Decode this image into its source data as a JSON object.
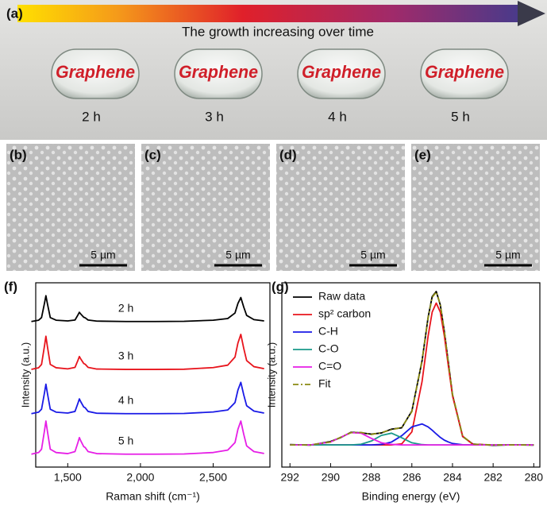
{
  "photos": {
    "label": "(a)",
    "caption": "The growth increasing over time",
    "items": [
      {
        "text": "Graphene",
        "time": "2 h"
      },
      {
        "text": "Graphene",
        "time": "3 h"
      },
      {
        "text": "Graphene",
        "time": "4 h"
      },
      {
        "text": "Graphene",
        "time": "5 h"
      }
    ]
  },
  "sem": [
    {
      "label": "(b)",
      "scale": "5 µm"
    },
    {
      "label": "(c)",
      "scale": "5 µm"
    },
    {
      "label": "(d)",
      "scale": "5 µm"
    },
    {
      "label": "(e)",
      "scale": "5 µm"
    }
  ],
  "chart_data": [
    {
      "type": "line",
      "panel_label": "(f)",
      "x_label": "Raman shift (cm⁻¹)",
      "y_label": "Intensity (a.u.)",
      "xlim": [
        1280,
        2890
      ],
      "ylim": [
        0,
        100
      ],
      "xticks": [
        {
          "value": 1500,
          "label": "1,500"
        },
        {
          "value": 2000,
          "label": "2,000"
        },
        {
          "value": 2500,
          "label": "2,500"
        }
      ],
      "x": [
        1250,
        1300,
        1320,
        1340,
        1350,
        1360,
        1380,
        1420,
        1500,
        1550,
        1570,
        1580,
        1590,
        1610,
        1620,
        1640,
        1700,
        1900,
        2100,
        2300,
        2500,
        2600,
        2650,
        2670,
        2690,
        2710,
        2730,
        2780,
        2850
      ],
      "series": [
        {
          "name": "2 h",
          "color": "#000000",
          "values": [
            79,
            79.7,
            81.1,
            88.8,
            93,
            88.8,
            81.1,
            79.7,
            79.3,
            79.8,
            82.5,
            84,
            83,
            81.3,
            81,
            79.8,
            79.2,
            79,
            79,
            79.1,
            79.7,
            80.6,
            83.6,
            88.8,
            92,
            86.8,
            82.3,
            80,
            79.3
          ]
        },
        {
          "name": "3 h",
          "color": "#e8141c",
          "values": [
            53,
            53.9,
            55.7,
            65.6,
            71,
            65.6,
            55.7,
            53.9,
            53.3,
            54.1,
            57.9,
            60,
            58.6,
            56.2,
            55.8,
            54.1,
            53.2,
            53,
            53,
            53.1,
            54,
            55.3,
            59.7,
            67.3,
            72,
            64.4,
            57.8,
            54.5,
            53.4
          ]
        },
        {
          "name": "4 h",
          "color": "#1a1ae6",
          "values": [
            29,
            29.8,
            31.4,
            40.2,
            45,
            40.2,
            31.4,
            29.8,
            29.3,
            30.2,
            34.6,
            37,
            35.4,
            32.6,
            32.2,
            30.2,
            29.2,
            29,
            29,
            29.1,
            29.9,
            31,
            35,
            41.8,
            46,
            39.2,
            33.3,
            30.4,
            29.3
          ]
        },
        {
          "name": "5 h",
          "color": "#e61ee6",
          "values": [
            7,
            7.9,
            9.7,
            19.6,
            25,
            19.6,
            9.7,
            7.9,
            7.3,
            8.4,
            13.3,
            16,
            14.2,
            11.1,
            10.6,
            8.4,
            7.3,
            7,
            7,
            7.1,
            7.9,
            9.2,
            13.3,
            20.5,
            25,
            17.8,
            11.5,
            8.4,
            7.4
          ]
        }
      ]
    },
    {
      "type": "line",
      "panel_label": "(g)",
      "x_label": "Binding energy (eV)",
      "y_label": "Intensity (a.u.)",
      "xlim": [
        292.4,
        279.7
      ],
      "ylim": [
        0,
        100
      ],
      "xticks": [
        292,
        290,
        288,
        286,
        284,
        282,
        280
      ],
      "legend": "upper left",
      "x": [
        292,
        291,
        290,
        289.5,
        289,
        288.5,
        288,
        287.5,
        287,
        286.5,
        286,
        285.5,
        285.2,
        285,
        284.8,
        284.6,
        284.4,
        284.2,
        284,
        283.5,
        283,
        282,
        281,
        280
      ],
      "series": [
        {
          "name": "Raw data",
          "color": "#000000",
          "values": [
            12.2,
            11.9,
            13.9,
            16.0,
            18.9,
            18.6,
            17.9,
            18.5,
            20.6,
            21.3,
            30.4,
            57.5,
            81.3,
            92.5,
            95.3,
            88.0,
            73.4,
            56.4,
            39.2,
            16.6,
            12.5,
            11.8,
            12.1,
            11.9
          ]
        },
        {
          "name": "sp² carbon",
          "color": "#e8141c",
          "values": [
            12,
            12,
            12,
            12,
            12,
            12,
            12,
            12,
            12,
            12.6,
            19.1,
            46.3,
            71.1,
            84.1,
            89,
            84.1,
            71.1,
            54.5,
            38.7,
            16.7,
            12.4,
            12,
            12,
            12
          ]
        },
        {
          "name": "C-H",
          "color": "#1a1ae6",
          "values": [
            12,
            12,
            12,
            12,
            12,
            12,
            12,
            12.3,
            13.6,
            17,
            21.8,
            23.4,
            21.8,
            20,
            18,
            16.1,
            14.6,
            13.6,
            12.8,
            12.1,
            12,
            12,
            12,
            12
          ]
        },
        {
          "name": "C-O",
          "color": "#1a9a8a",
          "values": [
            12,
            12,
            12,
            12,
            12,
            12.4,
            14.1,
            17.2,
            18.4,
            15.9,
            13.2,
            12.2,
            12,
            12,
            12,
            12,
            12,
            12,
            12,
            12,
            12,
            12,
            12,
            12
          ]
        },
        {
          "name": "C=O",
          "color": "#e61ee6",
          "values": [
            12,
            12,
            13.6,
            16.2,
            18.7,
            18.4,
            15.6,
            13.2,
            12.3,
            12,
            12,
            12,
            12,
            12,
            12,
            12,
            12,
            12,
            12,
            12,
            12,
            12,
            12,
            12
          ]
        },
        {
          "name": "Fit",
          "color": "#8a8a10",
          "style": "dashdot",
          "values": [
            12,
            12,
            13.6,
            16.2,
            18.7,
            18.8,
            17.7,
            18.7,
            20.3,
            21.5,
            30.1,
            57.9,
            80.9,
            92.1,
            95,
            88.2,
            73.7,
            56.1,
            39.5,
            16.8,
            12.4,
            12,
            12,
            12
          ]
        }
      ]
    }
  ]
}
